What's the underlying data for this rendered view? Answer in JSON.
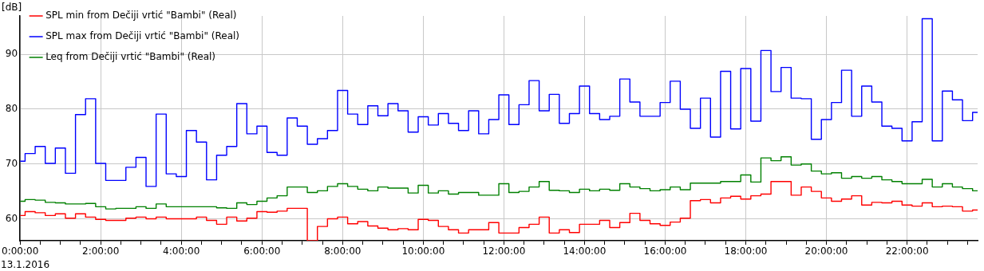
{
  "chart_data": {
    "type": "step",
    "ylabel": "[dB]",
    "annotations": [
      "13.1.2016"
    ],
    "x": [
      0,
      0.25,
      0.5,
      0.75,
      1,
      1.25,
      1.5,
      1.75,
      2,
      2.25,
      2.5,
      2.75,
      3,
      3.25,
      3.5,
      3.75,
      4,
      4.25,
      4.5,
      4.75,
      5,
      5.25,
      5.5,
      5.75,
      6,
      6.25,
      6.5,
      6.75,
      7,
      7.25,
      7.5,
      7.75,
      8,
      8.25,
      8.5,
      8.75,
      9,
      9.25,
      9.5,
      9.75,
      10,
      10.25,
      10.5,
      10.75,
      11,
      11.25,
      11.5,
      11.75,
      12,
      12.25,
      12.5,
      12.75,
      13,
      13.25,
      13.5,
      13.75,
      14,
      14.25,
      14.5,
      14.75,
      15,
      15.25,
      15.5,
      15.75,
      16,
      16.25,
      16.5,
      16.75,
      17,
      17.25,
      17.5,
      17.75,
      18,
      18.25,
      18.5,
      18.75,
      19,
      19.25,
      19.5,
      19.75,
      20,
      20.25,
      20.5,
      20.75,
      21,
      21.25,
      21.5,
      21.75,
      22,
      22.25,
      22.5,
      22.75,
      23,
      23.25,
      23.5,
      23.75
    ],
    "series": [
      {
        "name": "SPL min from Dečiji vrtić \"Bambi\" (Real)",
        "color": "#ff0000",
        "values": [
          60.6,
          61.3,
          61.1,
          60.6,
          60.9,
          60.1,
          60.9,
          60.3,
          59.9,
          59.7,
          59.7,
          60.1,
          60.3,
          60.0,
          60.3,
          60.0,
          60.0,
          60.0,
          60.3,
          59.7,
          59.0,
          60.3,
          59.6,
          60.1,
          61.3,
          61.2,
          61.4,
          61.9,
          61.9,
          56,
          58.6,
          60.0,
          60.3,
          59.1,
          59.5,
          58.7,
          58.3,
          58.0,
          58.2,
          58.0,
          59.9,
          59.7,
          58.6,
          58.0,
          57.4,
          58.0,
          58.0,
          59.3,
          57.4,
          57.4,
          58.4,
          59.0,
          60.3,
          57.4,
          58.0,
          57.5,
          59.0,
          59.0,
          59.7,
          58.4,
          59.3,
          61.0,
          59.7,
          59.1,
          58.8,
          59.4,
          60.1,
          63.3,
          63.5,
          62.9,
          63.8,
          64.1,
          63.6,
          64.2,
          64.5,
          66.8,
          66.8,
          64.3,
          65.8,
          65.0,
          63.8,
          63.2,
          63.6,
          64.2,
          62.5,
          63.0,
          62.9,
          63.2,
          62.5,
          62.3,
          62.9,
          62.2,
          62.3,
          62.2,
          61.4,
          61.6
        ]
      },
      {
        "name": "SPL max from Dečiji vrtić \"Bambi\" (Real)",
        "color": "#0000ff",
        "values": [
          70.5,
          71.9,
          73.2,
          70.1,
          72.9,
          68.3,
          79.0,
          81.9,
          70.1,
          67.0,
          67.0,
          69.4,
          71.2,
          65.9,
          79.1,
          68.2,
          67.7,
          76.1,
          74.0,
          67.1,
          71.6,
          73.2,
          81.0,
          75.5,
          76.9,
          72.1,
          71.6,
          78.4,
          76.9,
          73.6,
          74.6,
          76.1,
          83.4,
          79.1,
          77.2,
          80.6,
          78.8,
          81.0,
          79.7,
          75.8,
          78.6,
          77.1,
          79.2,
          77.4,
          76.1,
          79.7,
          75.5,
          78.1,
          82.6,
          77.2,
          80.8,
          85.2,
          79.7,
          82.7,
          77.4,
          79.2,
          84.2,
          79.2,
          78.1,
          78.7,
          85.5,
          81.3,
          78.7,
          78.7,
          81.2,
          85.1,
          80.0,
          76.5,
          82.0,
          74.9,
          86.9,
          76.4,
          87.4,
          77.8,
          90.7,
          83.2,
          87.6,
          82.0,
          81.9,
          74.5,
          78.1,
          81.2,
          87.1,
          78.7,
          84.2,
          81.3,
          76.9,
          76.5,
          74.2,
          77.7,
          96.5,
          74.2,
          83.3,
          81.7,
          77.9,
          79.4
        ]
      },
      {
        "name": "Leq from Dečiji vrtić \"Bambi\" (Real)",
        "color": "#008000",
        "values": [
          63.2,
          63.5,
          63.4,
          63.0,
          62.9,
          62.7,
          62.7,
          62.8,
          62.2,
          61.8,
          61.9,
          61.9,
          62.2,
          61.9,
          62.7,
          62.2,
          62.2,
          62.2,
          62.2,
          62.2,
          62.0,
          61.9,
          62.9,
          62.6,
          63.2,
          63.8,
          64.2,
          65.8,
          65.8,
          64.8,
          65.1,
          65.9,
          66.4,
          65.9,
          65.4,
          65.1,
          65.8,
          65.6,
          65.6,
          64.7,
          66.1,
          64.7,
          65.1,
          64.5,
          64.8,
          64.8,
          64.3,
          64.3,
          66.4,
          64.8,
          65.0,
          65.8,
          66.8,
          65.2,
          65.1,
          64.8,
          65.4,
          65.1,
          65.4,
          65.2,
          66.4,
          65.8,
          65.5,
          65.1,
          65.3,
          65.8,
          65.3,
          66.5,
          66.5,
          66.5,
          66.8,
          66.8,
          68.0,
          66.7,
          71.1,
          70.6,
          71.3,
          69.8,
          70.0,
          68.7,
          68.2,
          68.4,
          67.4,
          67.7,
          67.4,
          67.7,
          67.1,
          66.8,
          66.4,
          66.4,
          67.2,
          65.8,
          66.4,
          65.8,
          65.5,
          65.1
        ]
      }
    ],
    "xlim": [
      0,
      23.75
    ],
    "xticks": [
      {
        "value": 0,
        "label": "0:00:00"
      },
      {
        "value": 0.5,
        "label": null
      },
      {
        "value": 1,
        "label": null
      },
      {
        "value": 1.5,
        "label": null
      },
      {
        "value": 2,
        "label": "2:00:00"
      },
      {
        "value": 2.5,
        "label": null
      },
      {
        "value": 3,
        "label": null
      },
      {
        "value": 3.5,
        "label": null
      },
      {
        "value": 4,
        "label": "4:00:00"
      },
      {
        "value": 4.5,
        "label": null
      },
      {
        "value": 5,
        "label": null
      },
      {
        "value": 5.5,
        "label": null
      },
      {
        "value": 6,
        "label": "6:00:00"
      },
      {
        "value": 6.5,
        "label": null
      },
      {
        "value": 7,
        "label": null
      },
      {
        "value": 7.5,
        "label": null
      },
      {
        "value": 8,
        "label": "8:00:00"
      },
      {
        "value": 8.5,
        "label": null
      },
      {
        "value": 9,
        "label": null
      },
      {
        "value": 9.5,
        "label": null
      },
      {
        "value": 10,
        "label": "10:00:00"
      },
      {
        "value": 10.5,
        "label": null
      },
      {
        "value": 11,
        "label": null
      },
      {
        "value": 11.5,
        "label": null
      },
      {
        "value": 12,
        "label": "12:00:00"
      },
      {
        "value": 12.5,
        "label": null
      },
      {
        "value": 13,
        "label": null
      },
      {
        "value": 13.5,
        "label": null
      },
      {
        "value": 14,
        "label": "14:00:00"
      },
      {
        "value": 14.5,
        "label": null
      },
      {
        "value": 15,
        "label": null
      },
      {
        "value": 15.5,
        "label": null
      },
      {
        "value": 16,
        "label": "16:00:00"
      },
      {
        "value": 16.5,
        "label": null
      },
      {
        "value": 17,
        "label": null
      },
      {
        "value": 17.5,
        "label": null
      },
      {
        "value": 18,
        "label": "18:00:00"
      },
      {
        "value": 18.5,
        "label": null
      },
      {
        "value": 19,
        "label": null
      },
      {
        "value": 19.5,
        "label": null
      },
      {
        "value": 20,
        "label": "20:00:00"
      },
      {
        "value": 20.5,
        "label": null
      },
      {
        "value": 21,
        "label": null
      },
      {
        "value": 21.5,
        "label": null
      },
      {
        "value": 22,
        "label": "22:00:00"
      },
      {
        "value": 22.5,
        "label": null
      },
      {
        "value": 23,
        "label": null
      },
      {
        "value": 23.5,
        "label": null
      }
    ],
    "ylim": [
      56,
      97
    ],
    "yticks": [
      60,
      70,
      80,
      90
    ],
    "grid": true,
    "legend": "top left",
    "marker": "none",
    "line_style": "solid"
  }
}
